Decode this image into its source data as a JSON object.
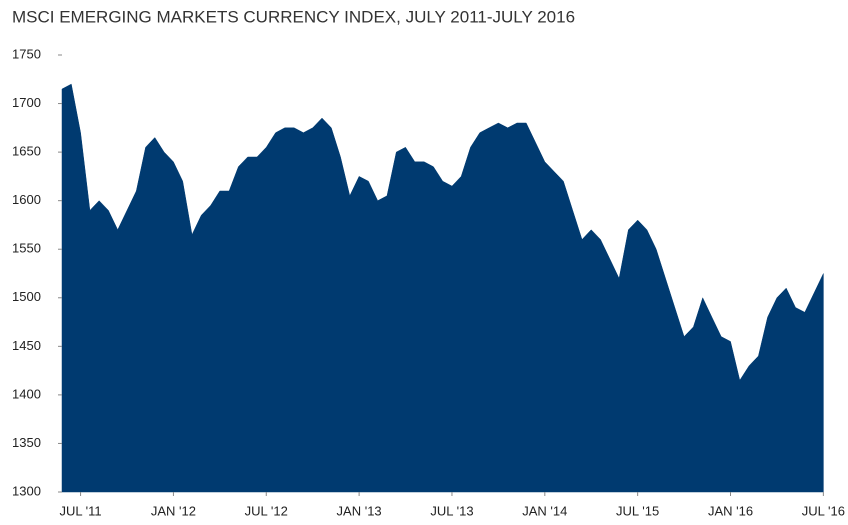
{
  "chart_data": {
    "type": "area",
    "title": "MSCI EMERGING MARKETS CURRENCY INDEX, JULY 2011-JULY 2016",
    "color": "#003a70",
    "x": [
      0,
      1,
      2,
      3,
      4,
      5,
      6,
      7,
      8,
      9,
      10,
      11,
      12,
      13,
      14,
      15,
      16,
      17,
      18,
      19,
      20,
      21,
      22,
      23,
      24,
      25,
      26,
      27,
      28,
      29,
      30,
      31,
      32,
      33,
      34,
      35,
      36,
      37,
      38,
      39,
      40,
      41,
      42,
      43,
      44,
      45,
      46,
      47,
      48,
      49,
      50,
      51,
      52,
      53,
      54,
      55,
      56,
      57,
      58,
      59,
      60,
      61,
      62,
      63,
      64,
      65,
      66,
      67,
      68,
      69,
      70,
      71,
      72,
      73,
      74,
      75,
      76,
      77,
      78,
      79,
      80,
      81,
      82
    ],
    "values": [
      1715,
      1720,
      1670,
      1590,
      1600,
      1590,
      1570,
      1590,
      1610,
      1655,
      1665,
      1650,
      1640,
      1620,
      1565,
      1585,
      1595,
      1610,
      1610,
      1635,
      1645,
      1645,
      1655,
      1670,
      1675,
      1675,
      1670,
      1675,
      1685,
      1675,
      1645,
      1605,
      1625,
      1620,
      1600,
      1605,
      1650,
      1655,
      1640,
      1640,
      1635,
      1620,
      1615,
      1625,
      1655,
      1670,
      1675,
      1680,
      1675,
      1680,
      1680,
      1660,
      1640,
      1630,
      1620,
      1590,
      1560,
      1570,
      1560,
      1540,
      1520,
      1570,
      1580,
      1570,
      1550,
      1520,
      1490,
      1460,
      1470,
      1500,
      1480,
      1460,
      1455,
      1415,
      1430,
      1440,
      1480,
      1500,
      1510,
      1490,
      1485,
      1505,
      1525
    ],
    "xlim": [
      0,
      82.5
    ],
    "xticks": [
      {
        "value": 2,
        "label": "JUL '11"
      },
      {
        "value": 12,
        "label": "JAN '12"
      },
      {
        "value": 22,
        "label": "JUL '12"
      },
      {
        "value": 32,
        "label": "JAN '13"
      },
      {
        "value": 42,
        "label": "JUL '13"
      },
      {
        "value": 52,
        "label": "JAN '14"
      },
      {
        "value": 62,
        "label": "JUL '15"
      },
      {
        "value": 72,
        "label": "JAN '16"
      },
      {
        "value": 82,
        "label": "JUL '16"
      }
    ],
    "ylim": [
      1300,
      1750
    ],
    "yticks": [
      1300,
      1350,
      1400,
      1450,
      1500,
      1550,
      1600,
      1650,
      1700,
      1750
    ]
  }
}
